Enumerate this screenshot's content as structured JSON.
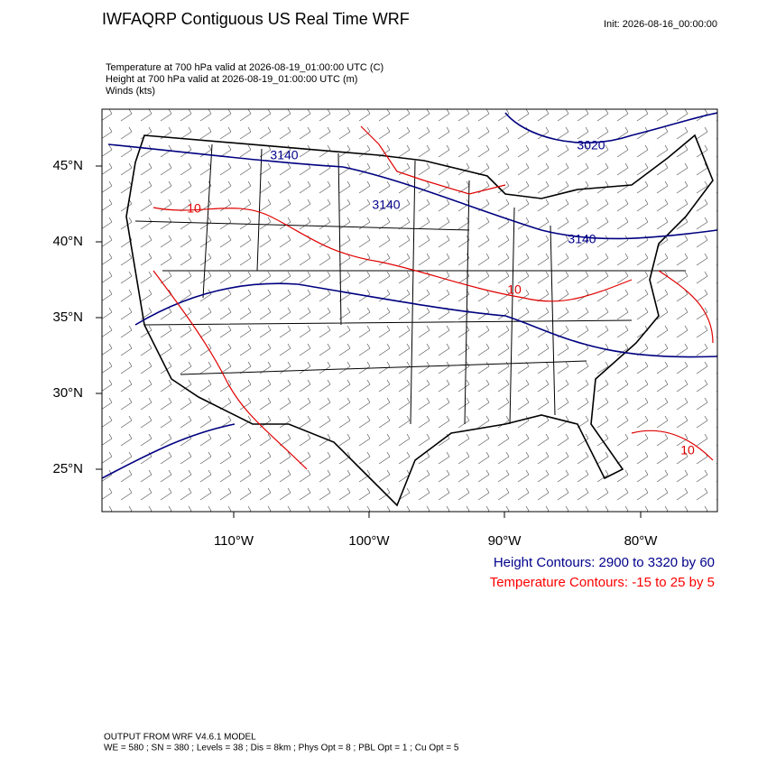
{
  "header": {
    "title": "IWFAQRP Contiguous US Real Time WRF",
    "init": "Init: 2026-08-16_00:00:00"
  },
  "fields": [
    "Temperature at 700 hPa valid at 2026-08-19_01:00:00 UTC   (C)",
    "Height at 700 hPa valid at 2026-08-19_01:00:00 UTC   (m)",
    "Winds   (kts)"
  ],
  "map": {
    "lat_labels": [
      "45°N",
      "40°N",
      "35°N",
      "30°N",
      "25°N"
    ],
    "lon_labels": [
      "110°W",
      "100°W",
      "90°W",
      "80°W"
    ],
    "height_contour_labels": [
      "3140",
      "3140",
      "3020",
      "3140"
    ],
    "temperature_contour_labels": [
      "10",
      "10",
      "10"
    ]
  },
  "legend": {
    "height": "Height Contours: 2900 to 3320 by 60",
    "temperature": "Temperature Contours: -15 to 25 by 5"
  },
  "footer": [
    "OUTPUT FROM WRF V4.6.1 MODEL",
    "WE = 580 ; SN = 380 ; Levels = 38 ; Dis = 8km ; Phys Opt = 8 ; PBL Opt = 1 ; Cu Opt = 5"
  ]
}
